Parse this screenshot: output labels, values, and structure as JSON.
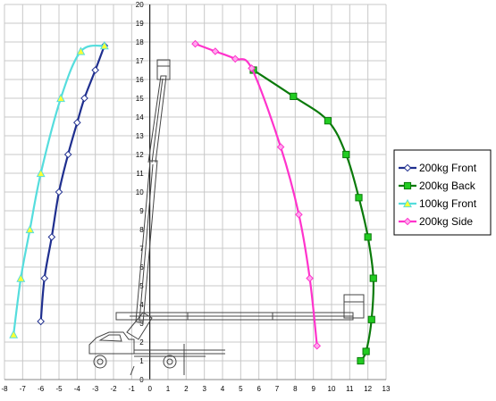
{
  "chart_data": {
    "type": "line",
    "title": "",
    "xlabel": "",
    "ylabel": "",
    "xlim": [
      -8,
      13
    ],
    "ylim": [
      0,
      20
    ],
    "x_ticks": [
      -8,
      -7,
      -6,
      -5,
      -4,
      -3,
      -2,
      -1,
      0,
      1,
      2,
      3,
      4,
      5,
      6,
      7,
      8,
      9,
      10,
      11,
      12,
      13
    ],
    "y_ticks": [
      0,
      1,
      2,
      3,
      4,
      5,
      6,
      7,
      8,
      9,
      10,
      11,
      12,
      13,
      14,
      15,
      16,
      17,
      18,
      19,
      20
    ],
    "grid": true,
    "legend_position": "right",
    "series": [
      {
        "name": "200kg Front",
        "color": "#1f2f8f",
        "marker": "diamond",
        "marker_fill": "#ffffff",
        "points": [
          [
            -6.0,
            3.1
          ],
          [
            -5.8,
            5.4
          ],
          [
            -5.4,
            7.6
          ],
          [
            -5.0,
            10.0
          ],
          [
            -4.5,
            12.0
          ],
          [
            -4.0,
            13.7
          ],
          [
            -3.6,
            15.0
          ],
          [
            -3.0,
            16.5
          ],
          [
            -2.5,
            17.8
          ]
        ]
      },
      {
        "name": "200kg Back",
        "color": "#0a7a0a",
        "marker": "square",
        "marker_fill": "#22cc22",
        "points": [
          [
            5.7,
            16.5
          ],
          [
            7.9,
            15.1
          ],
          [
            9.8,
            13.8
          ],
          [
            10.8,
            12.0
          ],
          [
            11.5,
            9.7
          ],
          [
            12.0,
            7.6
          ],
          [
            12.3,
            5.4
          ],
          [
            12.2,
            3.2
          ],
          [
            11.9,
            1.5
          ],
          [
            11.6,
            1.0
          ]
        ]
      },
      {
        "name": "100kg Front",
        "color": "#55dddd",
        "marker": "triangle",
        "marker_fill": "#ffff33",
        "points": [
          [
            -7.5,
            2.4
          ],
          [
            -7.1,
            5.4
          ],
          [
            -6.6,
            8.0
          ],
          [
            -6.0,
            11.0
          ],
          [
            -4.9,
            15.0
          ],
          [
            -3.8,
            17.5
          ],
          [
            -2.5,
            17.8
          ]
        ]
      },
      {
        "name": "200kg Side",
        "color": "#ff33cc",
        "marker": "diamond",
        "marker_fill": "#ffaaee",
        "points": [
          [
            2.5,
            17.9
          ],
          [
            3.6,
            17.5
          ],
          [
            4.7,
            17.1
          ],
          [
            5.6,
            16.6
          ],
          [
            7.2,
            12.4
          ],
          [
            8.2,
            8.8
          ],
          [
            8.8,
            5.4
          ],
          [
            9.2,
            1.8
          ]
        ]
      }
    ]
  }
}
